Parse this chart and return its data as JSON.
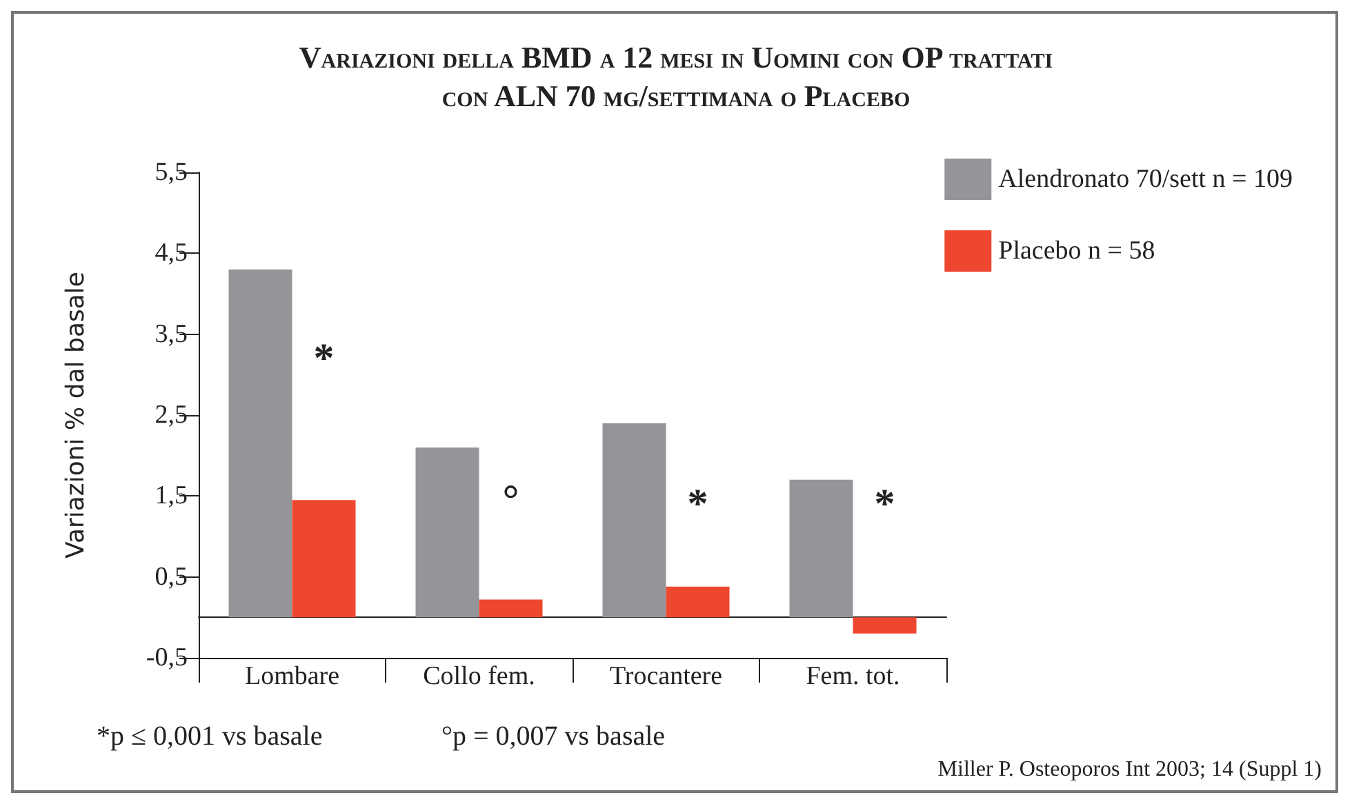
{
  "chart_data": {
    "type": "bar",
    "title": "Variazioni della BMD a 12 mesi in Uomini con OP trattati con ALN 70 mg/settimana o Placebo",
    "ylabel": "Variazioni % dal basale",
    "categories": [
      "Lombare",
      "Collo fem.",
      "Trocantere",
      "Fem. tot."
    ],
    "series": [
      {
        "name": "Alendronato 70/sett n = 109",
        "color": "#939598",
        "values": [
          4.3,
          2.1,
          2.4,
          1.7
        ]
      },
      {
        "name": "Placebo n = 58",
        "color": "#ee4730",
        "values": [
          1.45,
          0.22,
          0.38,
          -0.2
        ]
      }
    ],
    "ylim": [
      -0.5,
      5.5
    ],
    "yticks": [
      {
        "value": -0.5,
        "label": "-0,5"
      },
      {
        "value": 0.5,
        "label": "0,5"
      },
      {
        "value": 1.5,
        "label": "1,5"
      },
      {
        "value": 2.5,
        "label": "2,5"
      },
      {
        "value": 3.5,
        "label": "3,5"
      },
      {
        "value": 4.5,
        "label": "4,5"
      },
      {
        "value": 5.5,
        "label": "5,5"
      }
    ],
    "grid": false,
    "legend": "top right",
    "annotations": [
      {
        "text": "*",
        "x": "Lombare",
        "y": 3.2
      },
      {
        "text": "°",
        "x": "Collo fem.",
        "y": 1.45
      },
      {
        "text": "*",
        "x": "Trocantere",
        "y": 1.4
      },
      {
        "text": "*",
        "x": "Fem. tot.",
        "y": 1.4
      },
      "*p ≤ 0,001 vs basale",
      "°p = 0,007 vs basale",
      "Miller P. Osteoporos Int 2003; 14 (Suppl 1)"
    ]
  }
}
